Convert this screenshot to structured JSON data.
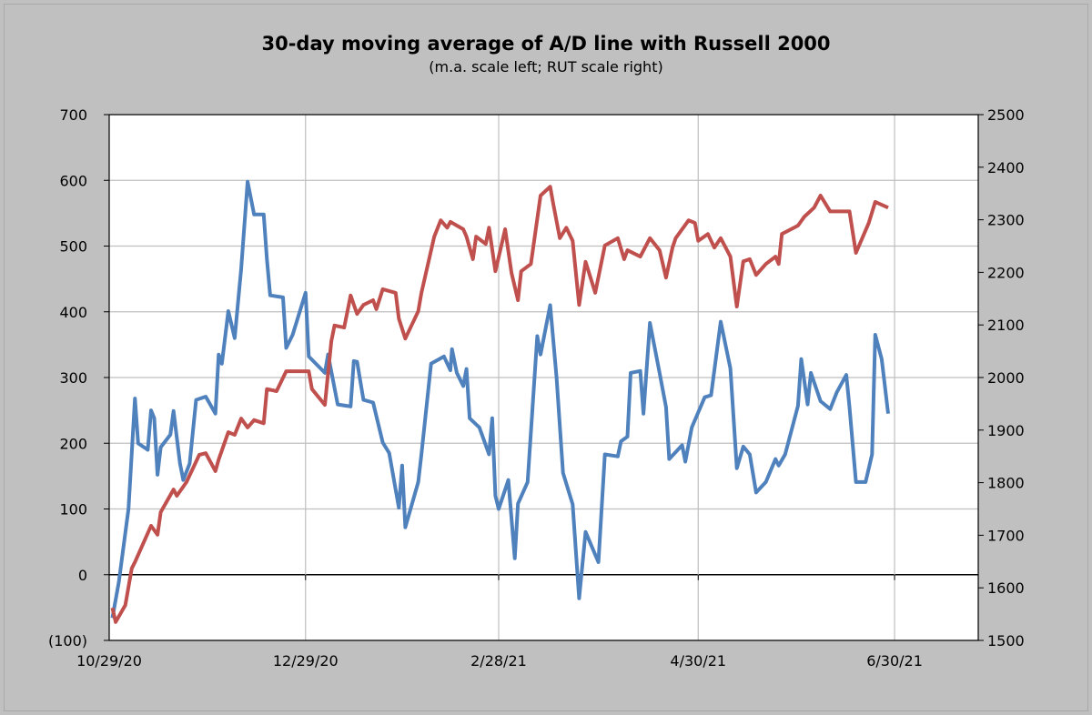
{
  "chart_data": {
    "type": "line",
    "title": "30-day moving average of A/D line with Russell 2000",
    "subtitle": "(m.a. scale left; RUT scale right)",
    "x_unit": "days since 10/29/20",
    "xlim": [
      0,
      270
    ],
    "x_ticks": [
      {
        "day": 0,
        "label": "10/29/20"
      },
      {
        "day": 61,
        "label": "12/29/20"
      },
      {
        "day": 121,
        "label": "2/28/21"
      },
      {
        "day": 183,
        "label": "4/30/21"
      },
      {
        "day": 244,
        "label": "6/30/21"
      }
    ],
    "y_left": {
      "lim": [
        -100,
        700
      ],
      "ticks": [
        -100,
        0,
        100,
        200,
        300,
        400,
        500,
        600,
        700
      ],
      "labels": [
        "(100)",
        "0",
        "100",
        "200",
        "300",
        "400",
        "500",
        "600",
        "700"
      ]
    },
    "y_right": {
      "lim": [
        1500,
        2500
      ],
      "ticks": [
        1500,
        1600,
        1700,
        1800,
        1900,
        2000,
        2100,
        2200,
        2300,
        2400,
        2500
      ],
      "labels": [
        "1500",
        "1600",
        "1700",
        "1800",
        "1900",
        "2000",
        "2100",
        "2200",
        "2300",
        "2400",
        "2500"
      ]
    },
    "grid": true,
    "series": [
      {
        "name": "A/D 30-day moving average",
        "axis": "left",
        "color": "#4f81bd",
        "points": [
          [
            1,
            -66
          ],
          [
            3,
            -11
          ],
          [
            6,
            100
          ],
          [
            8,
            268
          ],
          [
            9,
            200
          ],
          [
            12,
            190
          ],
          [
            13,
            250
          ],
          [
            14,
            238
          ],
          [
            15,
            152
          ],
          [
            16,
            194
          ],
          [
            19,
            213
          ],
          [
            20,
            249
          ],
          [
            22,
            169
          ],
          [
            23,
            144
          ],
          [
            25,
            169
          ],
          [
            27,
            266
          ],
          [
            30,
            271
          ],
          [
            33,
            245
          ],
          [
            34,
            335
          ],
          [
            35,
            321
          ],
          [
            37,
            401
          ],
          [
            39,
            360
          ],
          [
            41,
            465
          ],
          [
            43,
            598
          ],
          [
            45,
            548
          ],
          [
            48,
            548
          ],
          [
            49,
            480
          ],
          [
            50,
            425
          ],
          [
            54,
            422
          ],
          [
            55,
            345
          ],
          [
            57,
            365
          ],
          [
            61,
            429
          ],
          [
            62,
            332
          ],
          [
            67,
            307
          ],
          [
            68,
            335
          ],
          [
            71,
            259
          ],
          [
            75,
            256
          ],
          [
            76,
            325
          ],
          [
            77,
            324
          ],
          [
            79,
            266
          ],
          [
            82,
            262
          ],
          [
            85,
            201
          ],
          [
            87,
            185
          ],
          [
            90,
            102
          ],
          [
            91,
            166
          ],
          [
            92,
            72
          ],
          [
            96,
            141
          ],
          [
            97,
            183
          ],
          [
            100,
            321
          ],
          [
            104,
            332
          ],
          [
            106,
            311
          ],
          [
            106.5,
            343
          ],
          [
            108,
            307
          ],
          [
            110,
            287
          ],
          [
            111,
            313
          ],
          [
            112,
            238
          ],
          [
            115,
            224
          ],
          [
            118,
            183
          ],
          [
            119,
            238
          ],
          [
            120,
            120
          ],
          [
            121,
            100
          ],
          [
            124,
            144
          ],
          [
            126,
            25
          ],
          [
            127,
            108
          ],
          [
            130,
            141
          ],
          [
            133,
            363
          ],
          [
            134,
            335
          ],
          [
            137,
            410
          ],
          [
            139,
            300
          ],
          [
            141,
            155
          ],
          [
            144,
            107
          ],
          [
            146,
            -36
          ],
          [
            148,
            65
          ],
          [
            152,
            19
          ],
          [
            154,
            183
          ],
          [
            158,
            180
          ],
          [
            159,
            203
          ],
          [
            161,
            210
          ],
          [
            162,
            307
          ],
          [
            165,
            310
          ],
          [
            166,
            245
          ],
          [
            168,
            383
          ],
          [
            171,
            307
          ],
          [
            173,
            255
          ],
          [
            174,
            176
          ],
          [
            178,
            197
          ],
          [
            179,
            172
          ],
          [
            181,
            224
          ],
          [
            185,
            270
          ],
          [
            187,
            273
          ],
          [
            190,
            385
          ],
          [
            193,
            314
          ],
          [
            195,
            162
          ],
          [
            197,
            195
          ],
          [
            199,
            183
          ],
          [
            201,
            125
          ],
          [
            204,
            141
          ],
          [
            207,
            176
          ],
          [
            208,
            166
          ],
          [
            210,
            183
          ],
          [
            214,
            257
          ],
          [
            215,
            328
          ],
          [
            217,
            259
          ],
          [
            218,
            307
          ],
          [
            221,
            264
          ],
          [
            224,
            252
          ],
          [
            226,
            277
          ],
          [
            229,
            304
          ],
          [
            230,
            255
          ],
          [
            232,
            141
          ],
          [
            235,
            141
          ],
          [
            237,
            183
          ],
          [
            238,
            365
          ],
          [
            240,
            328
          ],
          [
            242,
            245
          ]
        ]
      },
      {
        "name": "Russell 2000 (RUT)",
        "axis": "right",
        "color": "#c0504d",
        "points": [
          [
            1,
            1562
          ],
          [
            2,
            1535
          ],
          [
            5,
            1567
          ],
          [
            7,
            1637
          ],
          [
            8,
            1649
          ],
          [
            13,
            1718
          ],
          [
            15,
            1701
          ],
          [
            16,
            1744
          ],
          [
            20,
            1787
          ],
          [
            21,
            1775
          ],
          [
            24,
            1801
          ],
          [
            28,
            1853
          ],
          [
            30,
            1856
          ],
          [
            33,
            1822
          ],
          [
            34,
            1844
          ],
          [
            37,
            1896
          ],
          [
            39,
            1891
          ],
          [
            41,
            1922
          ],
          [
            43,
            1905
          ],
          [
            45,
            1919
          ],
          [
            48,
            1913
          ],
          [
            49,
            1978
          ],
          [
            52,
            1974
          ],
          [
            55,
            2012
          ],
          [
            62,
            2012
          ],
          [
            63,
            1978
          ],
          [
            67,
            1948
          ],
          [
            69,
            2069
          ],
          [
            70,
            2099
          ],
          [
            73,
            2095
          ],
          [
            75,
            2156
          ],
          [
            77,
            2121
          ],
          [
            79,
            2138
          ],
          [
            82,
            2147
          ],
          [
            83,
            2130
          ],
          [
            85,
            2168
          ],
          [
            89,
            2161
          ],
          [
            90,
            2112
          ],
          [
            92,
            2074
          ],
          [
            96,
            2126
          ],
          [
            97,
            2161
          ],
          [
            101,
            2268
          ],
          [
            103,
            2299
          ],
          [
            105,
            2285
          ],
          [
            106,
            2296
          ],
          [
            110,
            2282
          ],
          [
            111,
            2268
          ],
          [
            113,
            2225
          ],
          [
            114,
            2268
          ],
          [
            117,
            2254
          ],
          [
            118,
            2285
          ],
          [
            120,
            2202
          ],
          [
            123,
            2282
          ],
          [
            125,
            2199
          ],
          [
            127,
            2147
          ],
          [
            128,
            2202
          ],
          [
            131,
            2216
          ],
          [
            134,
            2346
          ],
          [
            137,
            2363
          ],
          [
            138,
            2329
          ],
          [
            140,
            2265
          ],
          [
            142,
            2285
          ],
          [
            144,
            2260
          ],
          [
            146,
            2138
          ],
          [
            148,
            2220
          ],
          [
            151,
            2161
          ],
          [
            154,
            2251
          ],
          [
            158,
            2265
          ],
          [
            160,
            2225
          ],
          [
            161,
            2242
          ],
          [
            165,
            2230
          ],
          [
            168,
            2265
          ],
          [
            171,
            2242
          ],
          [
            173,
            2190
          ],
          [
            175,
            2247
          ],
          [
            176,
            2265
          ],
          [
            180,
            2299
          ],
          [
            182,
            2294
          ],
          [
            183,
            2260
          ],
          [
            186,
            2273
          ],
          [
            188,
            2247
          ],
          [
            190,
            2265
          ],
          [
            193,
            2230
          ],
          [
            195,
            2135
          ],
          [
            197,
            2221
          ],
          [
            199,
            2225
          ],
          [
            201,
            2195
          ],
          [
            204,
            2216
          ],
          [
            207,
            2230
          ],
          [
            208,
            2216
          ],
          [
            209,
            2273
          ],
          [
            214,
            2289
          ],
          [
            216,
            2306
          ],
          [
            219,
            2323
          ],
          [
            221,
            2346
          ],
          [
            224,
            2316
          ],
          [
            230,
            2316
          ],
          [
            232,
            2237
          ],
          [
            236,
            2294
          ],
          [
            238,
            2334
          ],
          [
            242,
            2323
          ]
        ]
      }
    ]
  }
}
